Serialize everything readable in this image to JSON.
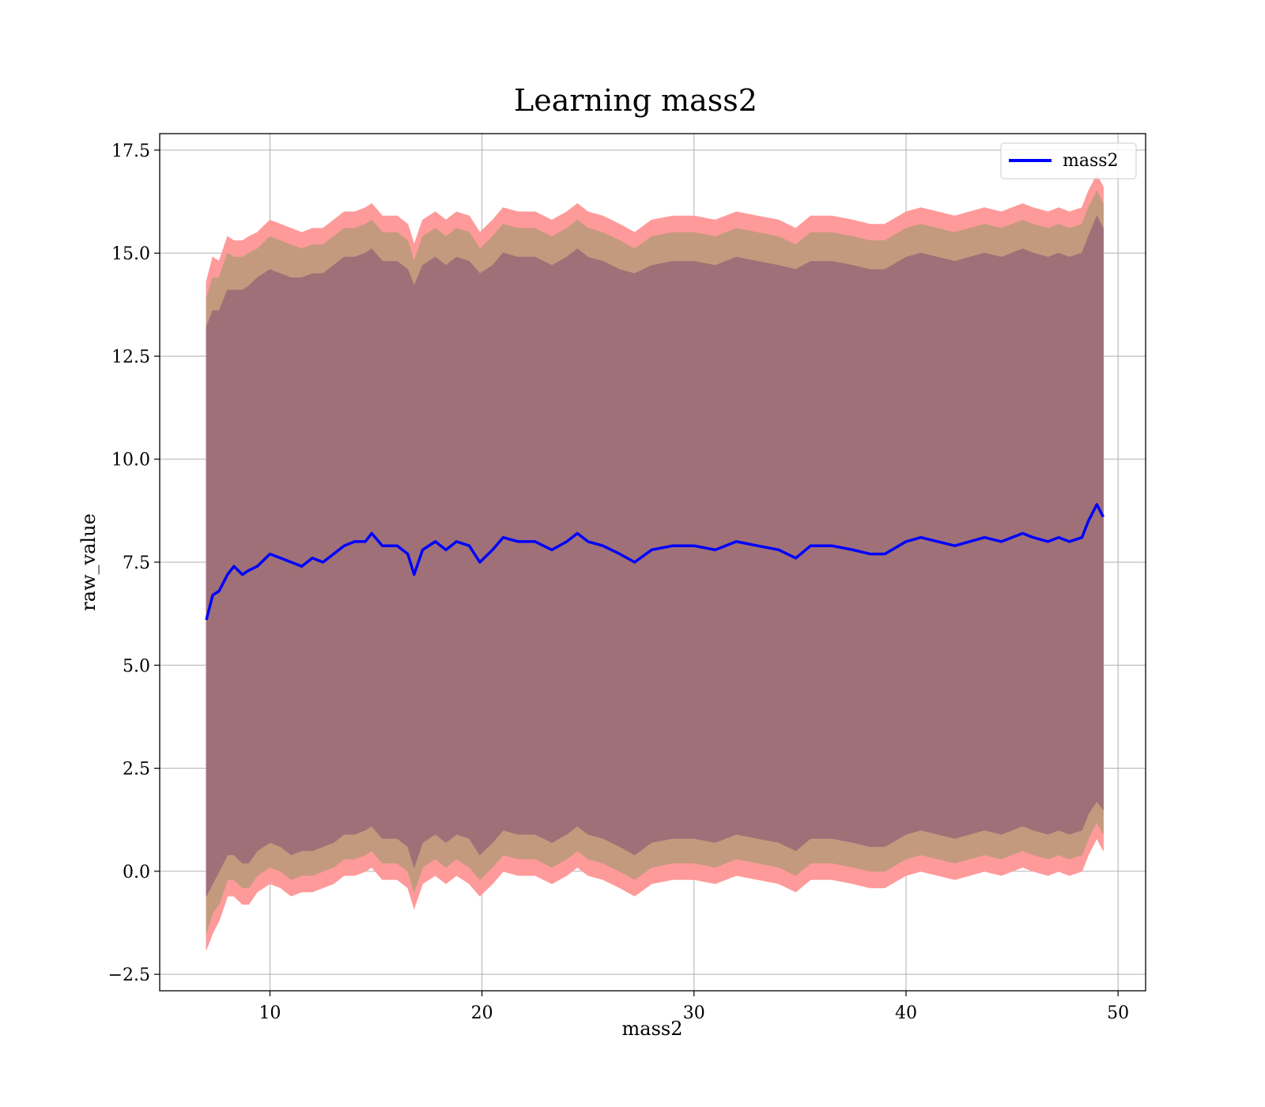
{
  "chart_data": {
    "type": "area",
    "title": "Learning mass2",
    "xlabel": "mass2",
    "ylabel": "raw_value",
    "xlim": [
      4.8,
      51.3
    ],
    "ylim": [
      -2.9,
      17.9
    ],
    "xticks": [
      10,
      20,
      30,
      40,
      50
    ],
    "yticks": [
      -2.5,
      0.0,
      2.5,
      5.0,
      7.5,
      10.0,
      12.5,
      15.0,
      17.5
    ],
    "xtick_labels": [
      "10",
      "20",
      "30",
      "40",
      "50"
    ],
    "ytick_labels": [
      "−2.5",
      "0.0",
      "2.5",
      "5.0",
      "7.5",
      "10.0",
      "12.5",
      "15.0",
      "17.5"
    ],
    "grid": true,
    "legend": {
      "position": "upper right",
      "entries": [
        "mass2"
      ]
    },
    "colors": {
      "line": "#0000ff",
      "band_outer": "#ff9a9a",
      "band_middle": "#c49a7e",
      "band_inner": "#a07078"
    },
    "series": [
      {
        "name": "mass2",
        "x": [
          7.0,
          7.3,
          7.6,
          8.0,
          8.3,
          8.7,
          9.0,
          9.4,
          10.0,
          10.5,
          11.0,
          11.5,
          12.0,
          12.5,
          13.0,
          13.5,
          14.0,
          14.5,
          14.8,
          15.3,
          16.0,
          16.5,
          16.8,
          17.2,
          17.8,
          18.3,
          18.8,
          19.4,
          19.9,
          20.5,
          21.0,
          21.7,
          22.5,
          23.3,
          24.0,
          24.5,
          25.0,
          25.7,
          26.5,
          27.2,
          28.0,
          29.0,
          30.0,
          31.0,
          32.0,
          33.0,
          34.0,
          34.8,
          35.5,
          36.5,
          37.5,
          38.3,
          39.0,
          40.0,
          40.7,
          41.5,
          42.3,
          43.0,
          43.7,
          44.5,
          45.5,
          46.0,
          46.7,
          47.2,
          47.7,
          48.3,
          48.6,
          49.0,
          49.3
        ],
        "mean": [
          6.1,
          6.7,
          6.8,
          7.2,
          7.4,
          7.2,
          7.3,
          7.4,
          7.7,
          7.6,
          7.5,
          7.4,
          7.6,
          7.5,
          7.7,
          7.9,
          8.0,
          8.0,
          8.2,
          7.9,
          7.9,
          7.7,
          7.2,
          7.8,
          8.0,
          7.8,
          8.0,
          7.9,
          7.5,
          7.8,
          8.1,
          8.0,
          8.0,
          7.8,
          8.0,
          8.2,
          8.0,
          7.9,
          7.7,
          7.5,
          7.8,
          7.9,
          7.9,
          7.8,
          8.0,
          7.9,
          7.8,
          7.6,
          7.9,
          7.9,
          7.8,
          7.7,
          7.7,
          8.0,
          8.1,
          8.0,
          7.9,
          8.0,
          8.1,
          8.0,
          8.2,
          8.1,
          8.0,
          8.1,
          8.0,
          8.1,
          8.5,
          8.9,
          8.6
        ],
        "band_outer": [
          {
            "lower": -1.9,
            "upper": 14.3
          },
          {
            "lower": -1.5,
            "upper": 14.9
          },
          {
            "lower": -1.2,
            "upper": 14.8
          },
          {
            "lower": -0.6,
            "upper": 15.4
          },
          {
            "lower": -0.6,
            "upper": 15.3
          },
          {
            "lower": -0.8,
            "upper": 15.3
          },
          {
            "lower": -0.8,
            "upper": 15.4
          },
          {
            "lower": -0.5,
            "upper": 15.5
          },
          {
            "lower": -0.3,
            "upper": 15.8
          },
          {
            "lower": -0.4,
            "upper": 15.7
          },
          {
            "lower": -0.6,
            "upper": 15.6
          },
          {
            "lower": -0.5,
            "upper": 15.5
          },
          {
            "lower": -0.5,
            "upper": 15.6
          },
          {
            "lower": -0.4,
            "upper": 15.6
          },
          {
            "lower": -0.3,
            "upper": 15.8
          },
          {
            "lower": -0.1,
            "upper": 16.0
          },
          {
            "lower": -0.1,
            "upper": 16.0
          },
          {
            "lower": 0.0,
            "upper": 16.1
          },
          {
            "lower": 0.1,
            "upper": 16.2
          },
          {
            "lower": -0.2,
            "upper": 15.9
          },
          {
            "lower": -0.2,
            "upper": 15.9
          },
          {
            "lower": -0.4,
            "upper": 15.7
          },
          {
            "lower": -0.9,
            "upper": 15.2
          },
          {
            "lower": -0.3,
            "upper": 15.8
          },
          {
            "lower": -0.1,
            "upper": 16.0
          },
          {
            "lower": -0.3,
            "upper": 15.8
          },
          {
            "lower": -0.1,
            "upper": 16.0
          },
          {
            "lower": -0.3,
            "upper": 15.9
          },
          {
            "lower": -0.6,
            "upper": 15.5
          },
          {
            "lower": -0.3,
            "upper": 15.8
          },
          {
            "lower": 0.0,
            "upper": 16.1
          },
          {
            "lower": -0.1,
            "upper": 16.0
          },
          {
            "lower": -0.1,
            "upper": 16.0
          },
          {
            "lower": -0.3,
            "upper": 15.8
          },
          {
            "lower": -0.1,
            "upper": 16.0
          },
          {
            "lower": 0.1,
            "upper": 16.2
          },
          {
            "lower": -0.1,
            "upper": 16.0
          },
          {
            "lower": -0.2,
            "upper": 15.9
          },
          {
            "lower": -0.4,
            "upper": 15.7
          },
          {
            "lower": -0.6,
            "upper": 15.5
          },
          {
            "lower": -0.3,
            "upper": 15.8
          },
          {
            "lower": -0.2,
            "upper": 15.9
          },
          {
            "lower": -0.2,
            "upper": 15.9
          },
          {
            "lower": -0.3,
            "upper": 15.8
          },
          {
            "lower": -0.1,
            "upper": 16.0
          },
          {
            "lower": -0.2,
            "upper": 15.9
          },
          {
            "lower": -0.3,
            "upper": 15.8
          },
          {
            "lower": -0.5,
            "upper": 15.6
          },
          {
            "lower": -0.2,
            "upper": 15.9
          },
          {
            "lower": -0.2,
            "upper": 15.9
          },
          {
            "lower": -0.3,
            "upper": 15.8
          },
          {
            "lower": -0.4,
            "upper": 15.7
          },
          {
            "lower": -0.4,
            "upper": 15.7
          },
          {
            "lower": -0.1,
            "upper": 16.0
          },
          {
            "lower": 0.0,
            "upper": 16.1
          },
          {
            "lower": -0.1,
            "upper": 16.0
          },
          {
            "lower": -0.2,
            "upper": 15.9
          },
          {
            "lower": -0.1,
            "upper": 16.0
          },
          {
            "lower": 0.0,
            "upper": 16.1
          },
          {
            "lower": -0.1,
            "upper": 16.0
          },
          {
            "lower": 0.1,
            "upper": 16.2
          },
          {
            "lower": 0.0,
            "upper": 16.1
          },
          {
            "lower": -0.1,
            "upper": 16.0
          },
          {
            "lower": 0.0,
            "upper": 16.1
          },
          {
            "lower": -0.1,
            "upper": 16.0
          },
          {
            "lower": 0.0,
            "upper": 16.1
          },
          {
            "lower": 0.4,
            "upper": 16.5
          },
          {
            "lower": 0.8,
            "upper": 16.9
          },
          {
            "lower": 0.5,
            "upper": 16.6
          }
        ],
        "band_middle": [
          {
            "lower": -1.5,
            "upper": 13.9
          },
          {
            "lower": -1.0,
            "upper": 14.4
          },
          {
            "lower": -0.8,
            "upper": 14.4
          },
          {
            "lower": -0.2,
            "upper": 15.0
          },
          {
            "lower": -0.2,
            "upper": 14.9
          },
          {
            "lower": -0.4,
            "upper": 14.9
          },
          {
            "lower": -0.4,
            "upper": 15.0
          },
          {
            "lower": -0.1,
            "upper": 15.1
          },
          {
            "lower": 0.1,
            "upper": 15.4
          },
          {
            "lower": 0.0,
            "upper": 15.3
          },
          {
            "lower": -0.2,
            "upper": 15.2
          },
          {
            "lower": -0.1,
            "upper": 15.1
          },
          {
            "lower": -0.1,
            "upper": 15.2
          },
          {
            "lower": 0.0,
            "upper": 15.2
          },
          {
            "lower": 0.1,
            "upper": 15.4
          },
          {
            "lower": 0.3,
            "upper": 15.6
          },
          {
            "lower": 0.3,
            "upper": 15.6
          },
          {
            "lower": 0.4,
            "upper": 15.7
          },
          {
            "lower": 0.5,
            "upper": 15.8
          },
          {
            "lower": 0.2,
            "upper": 15.5
          },
          {
            "lower": 0.2,
            "upper": 15.5
          },
          {
            "lower": 0.0,
            "upper": 15.3
          },
          {
            "lower": -0.5,
            "upper": 14.8
          },
          {
            "lower": 0.1,
            "upper": 15.4
          },
          {
            "lower": 0.3,
            "upper": 15.6
          },
          {
            "lower": 0.1,
            "upper": 15.4
          },
          {
            "lower": 0.3,
            "upper": 15.6
          },
          {
            "lower": 0.1,
            "upper": 15.5
          },
          {
            "lower": -0.2,
            "upper": 15.1
          },
          {
            "lower": 0.1,
            "upper": 15.4
          },
          {
            "lower": 0.4,
            "upper": 15.7
          },
          {
            "lower": 0.3,
            "upper": 15.6
          },
          {
            "lower": 0.3,
            "upper": 15.6
          },
          {
            "lower": 0.1,
            "upper": 15.4
          },
          {
            "lower": 0.3,
            "upper": 15.6
          },
          {
            "lower": 0.5,
            "upper": 15.8
          },
          {
            "lower": 0.3,
            "upper": 15.6
          },
          {
            "lower": 0.2,
            "upper": 15.5
          },
          {
            "lower": 0.0,
            "upper": 15.3
          },
          {
            "lower": -0.2,
            "upper": 15.1
          },
          {
            "lower": 0.1,
            "upper": 15.4
          },
          {
            "lower": 0.2,
            "upper": 15.5
          },
          {
            "lower": 0.2,
            "upper": 15.5
          },
          {
            "lower": 0.1,
            "upper": 15.4
          },
          {
            "lower": 0.3,
            "upper": 15.6
          },
          {
            "lower": 0.2,
            "upper": 15.5
          },
          {
            "lower": 0.1,
            "upper": 15.4
          },
          {
            "lower": -0.1,
            "upper": 15.2
          },
          {
            "lower": 0.2,
            "upper": 15.5
          },
          {
            "lower": 0.2,
            "upper": 15.5
          },
          {
            "lower": 0.1,
            "upper": 15.4
          },
          {
            "lower": 0.0,
            "upper": 15.3
          },
          {
            "lower": 0.0,
            "upper": 15.3
          },
          {
            "lower": 0.3,
            "upper": 15.6
          },
          {
            "lower": 0.4,
            "upper": 15.7
          },
          {
            "lower": 0.3,
            "upper": 15.6
          },
          {
            "lower": 0.2,
            "upper": 15.5
          },
          {
            "lower": 0.3,
            "upper": 15.6
          },
          {
            "lower": 0.4,
            "upper": 15.7
          },
          {
            "lower": 0.3,
            "upper": 15.6
          },
          {
            "lower": 0.5,
            "upper": 15.8
          },
          {
            "lower": 0.4,
            "upper": 15.7
          },
          {
            "lower": 0.3,
            "upper": 15.6
          },
          {
            "lower": 0.4,
            "upper": 15.7
          },
          {
            "lower": 0.3,
            "upper": 15.6
          },
          {
            "lower": 0.4,
            "upper": 15.7
          },
          {
            "lower": 0.8,
            "upper": 16.1
          },
          {
            "lower": 1.2,
            "upper": 16.5
          },
          {
            "lower": 0.9,
            "upper": 16.2
          }
        ],
        "band_inner": [
          {
            "lower": -0.6,
            "upper": 13.2
          },
          {
            "lower": -0.3,
            "upper": 13.6
          },
          {
            "lower": 0.0,
            "upper": 13.6
          },
          {
            "lower": 0.4,
            "upper": 14.1
          },
          {
            "lower": 0.4,
            "upper": 14.1
          },
          {
            "lower": 0.2,
            "upper": 14.1
          },
          {
            "lower": 0.2,
            "upper": 14.2
          },
          {
            "lower": 0.5,
            "upper": 14.4
          },
          {
            "lower": 0.7,
            "upper": 14.6
          },
          {
            "lower": 0.6,
            "upper": 14.5
          },
          {
            "lower": 0.4,
            "upper": 14.4
          },
          {
            "lower": 0.5,
            "upper": 14.4
          },
          {
            "lower": 0.5,
            "upper": 14.5
          },
          {
            "lower": 0.6,
            "upper": 14.5
          },
          {
            "lower": 0.7,
            "upper": 14.7
          },
          {
            "lower": 0.9,
            "upper": 14.9
          },
          {
            "lower": 0.9,
            "upper": 14.9
          },
          {
            "lower": 1.0,
            "upper": 15.0
          },
          {
            "lower": 1.1,
            "upper": 15.1
          },
          {
            "lower": 0.8,
            "upper": 14.8
          },
          {
            "lower": 0.8,
            "upper": 14.8
          },
          {
            "lower": 0.6,
            "upper": 14.6
          },
          {
            "lower": 0.1,
            "upper": 14.2
          },
          {
            "lower": 0.7,
            "upper": 14.7
          },
          {
            "lower": 0.9,
            "upper": 14.9
          },
          {
            "lower": 0.7,
            "upper": 14.7
          },
          {
            "lower": 0.9,
            "upper": 14.9
          },
          {
            "lower": 0.8,
            "upper": 14.8
          },
          {
            "lower": 0.4,
            "upper": 14.5
          },
          {
            "lower": 0.7,
            "upper": 14.7
          },
          {
            "lower": 1.0,
            "upper": 15.0
          },
          {
            "lower": 0.9,
            "upper": 14.9
          },
          {
            "lower": 0.9,
            "upper": 14.9
          },
          {
            "lower": 0.7,
            "upper": 14.7
          },
          {
            "lower": 0.9,
            "upper": 14.9
          },
          {
            "lower": 1.1,
            "upper": 15.1
          },
          {
            "lower": 0.9,
            "upper": 14.9
          },
          {
            "lower": 0.8,
            "upper": 14.8
          },
          {
            "lower": 0.6,
            "upper": 14.6
          },
          {
            "lower": 0.4,
            "upper": 14.5
          },
          {
            "lower": 0.7,
            "upper": 14.7
          },
          {
            "lower": 0.8,
            "upper": 14.8
          },
          {
            "lower": 0.8,
            "upper": 14.8
          },
          {
            "lower": 0.7,
            "upper": 14.7
          },
          {
            "lower": 0.9,
            "upper": 14.9
          },
          {
            "lower": 0.8,
            "upper": 14.8
          },
          {
            "lower": 0.7,
            "upper": 14.7
          },
          {
            "lower": 0.5,
            "upper": 14.6
          },
          {
            "lower": 0.8,
            "upper": 14.8
          },
          {
            "lower": 0.8,
            "upper": 14.8
          },
          {
            "lower": 0.7,
            "upper": 14.7
          },
          {
            "lower": 0.6,
            "upper": 14.6
          },
          {
            "lower": 0.6,
            "upper": 14.6
          },
          {
            "lower": 0.9,
            "upper": 14.9
          },
          {
            "lower": 1.0,
            "upper": 15.0
          },
          {
            "lower": 0.9,
            "upper": 14.9
          },
          {
            "lower": 0.8,
            "upper": 14.8
          },
          {
            "lower": 0.9,
            "upper": 14.9
          },
          {
            "lower": 1.0,
            "upper": 15.0
          },
          {
            "lower": 0.9,
            "upper": 14.9
          },
          {
            "lower": 1.1,
            "upper": 15.1
          },
          {
            "lower": 1.0,
            "upper": 15.0
          },
          {
            "lower": 0.9,
            "upper": 14.9
          },
          {
            "lower": 1.0,
            "upper": 15.0
          },
          {
            "lower": 0.9,
            "upper": 14.9
          },
          {
            "lower": 1.0,
            "upper": 15.0
          },
          {
            "lower": 1.4,
            "upper": 15.4
          },
          {
            "lower": 1.7,
            "upper": 15.9
          },
          {
            "lower": 1.5,
            "upper": 15.6
          }
        ]
      }
    ]
  }
}
